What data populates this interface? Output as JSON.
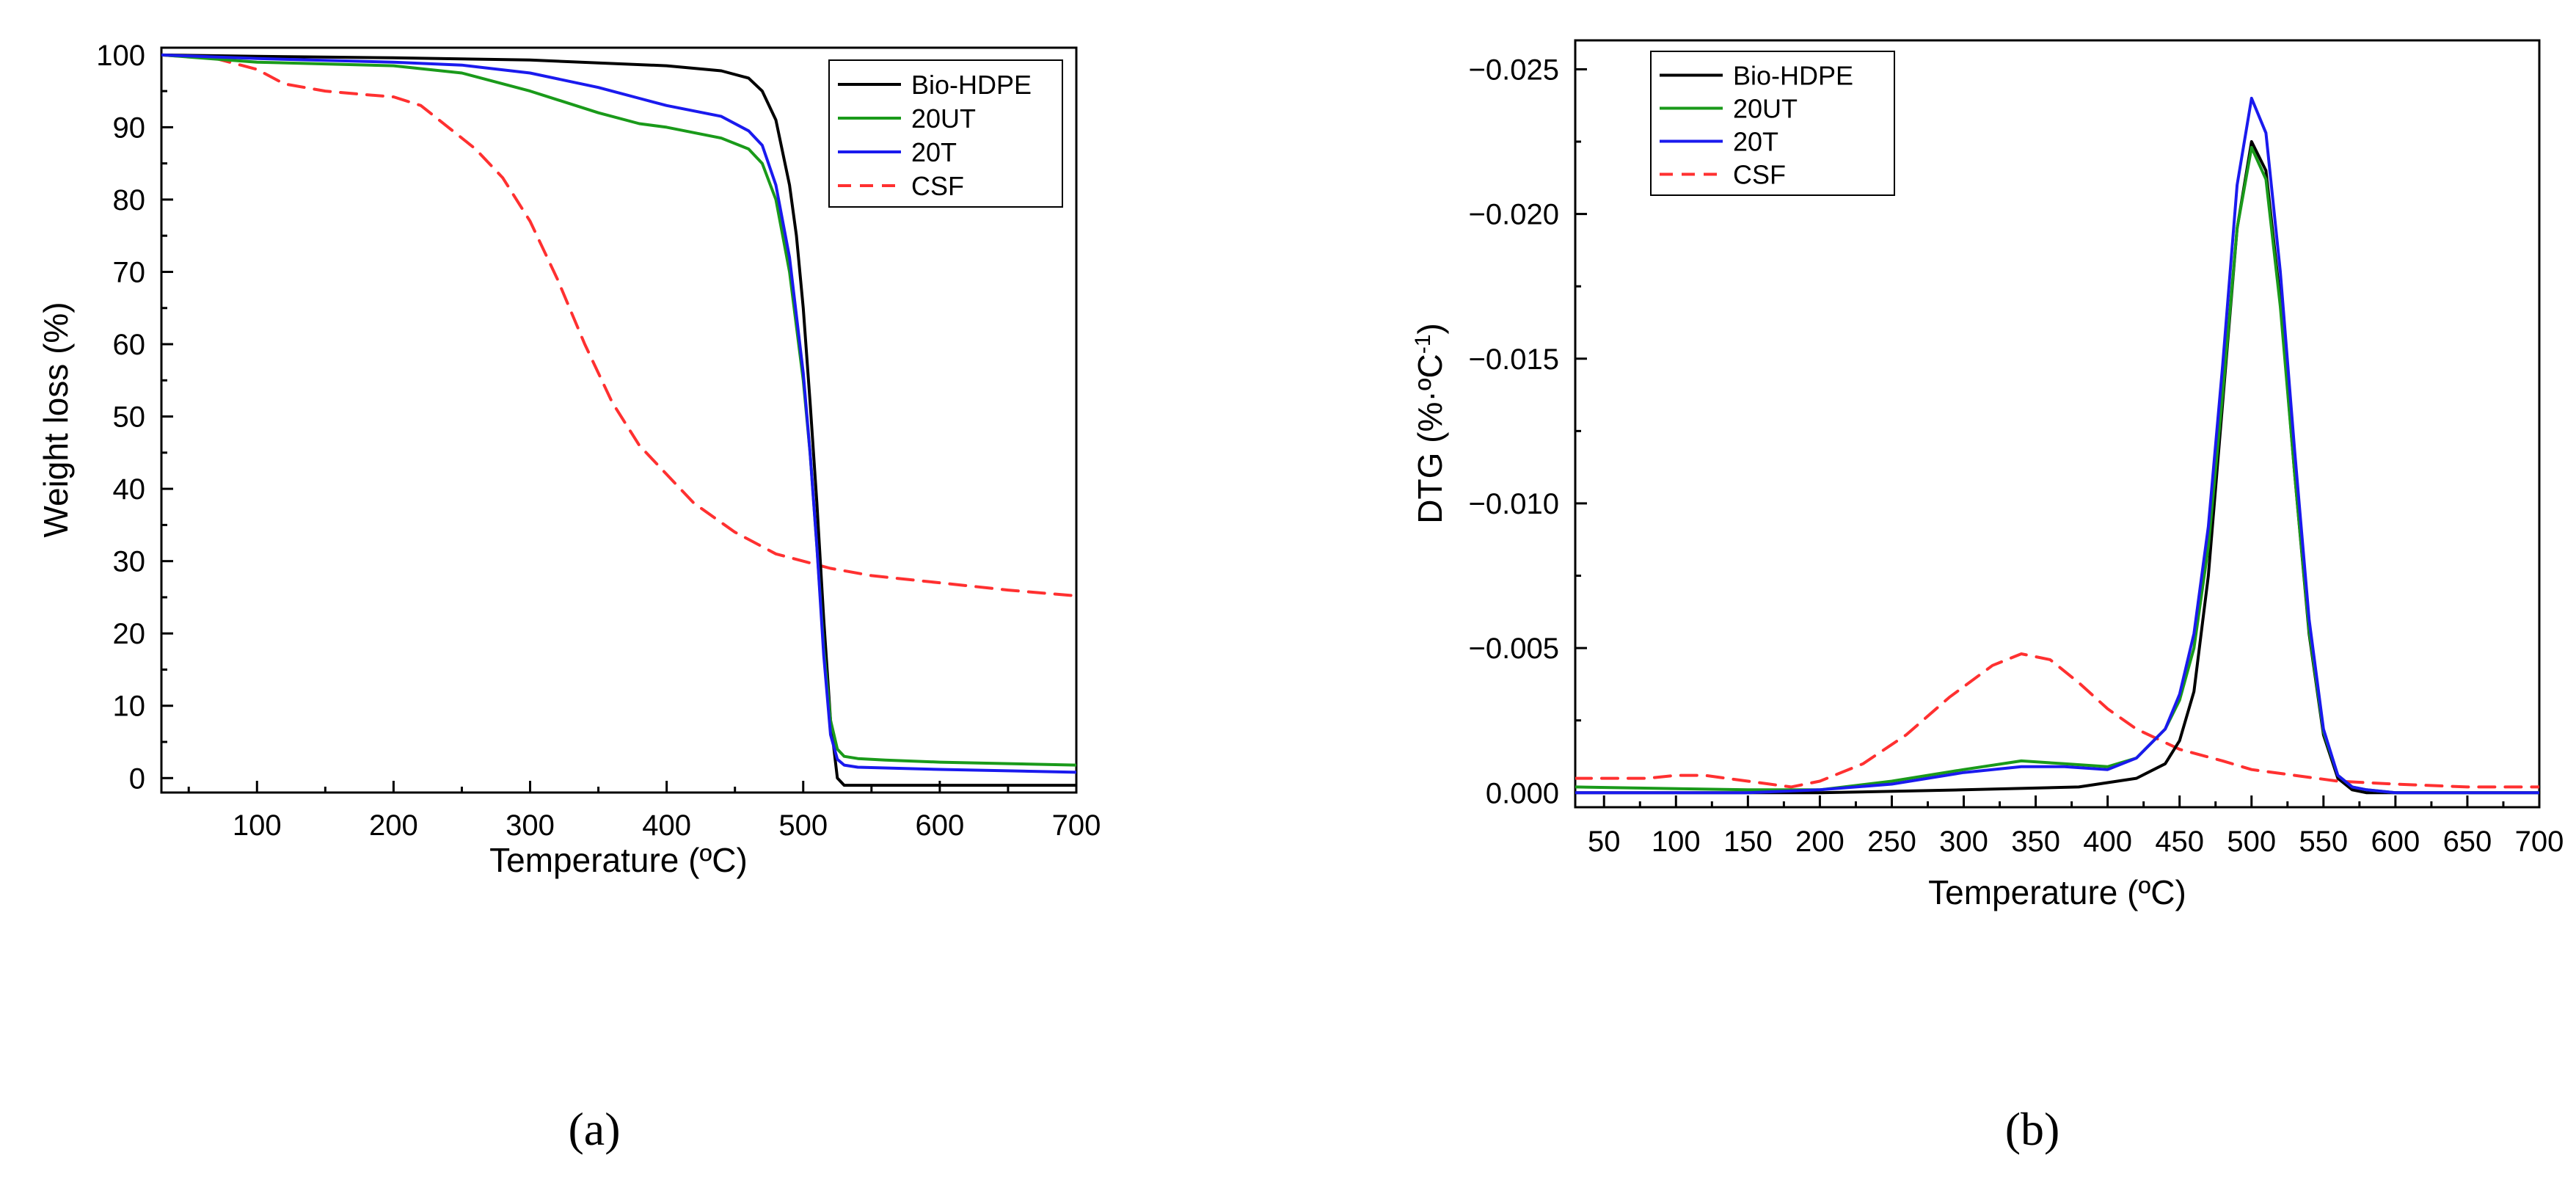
{
  "chart_data": [
    {
      "id": "a",
      "panel_label": "(a)",
      "type": "line",
      "xlabel": "Temperature (ºC)",
      "ylabel": "Weight loss (%)",
      "xlim": [
        30,
        700
      ],
      "ylim": [
        -2,
        101
      ],
      "xticks": [
        100,
        200,
        300,
        400,
        500,
        600,
        700
      ],
      "yticks": [
        0,
        10,
        20,
        30,
        40,
        50,
        60,
        70,
        80,
        90,
        100
      ],
      "legend_position": "top-right",
      "series": [
        {
          "name": "Bio-HDPE",
          "color": "#000000",
          "dash": "solid",
          "x": [
            30,
            100,
            200,
            300,
            400,
            440,
            460,
            470,
            480,
            490,
            495,
            500,
            505,
            510,
            515,
            520,
            525,
            530,
            560,
            600,
            700
          ],
          "y": [
            100,
            99.8,
            99.6,
            99.3,
            98.5,
            97.8,
            96.8,
            95,
            91,
            82,
            75,
            65,
            52,
            38,
            22,
            8,
            0,
            -1,
            -1,
            -1,
            -1
          ]
        },
        {
          "name": "20UT",
          "color": "#1a9a1a",
          "dash": "solid",
          "x": [
            30,
            100,
            200,
            250,
            300,
            350,
            380,
            400,
            440,
            460,
            470,
            480,
            490,
            500,
            505,
            510,
            515,
            520,
            525,
            530,
            540,
            560,
            600,
            650,
            700
          ],
          "y": [
            100,
            99,
            98.5,
            97.5,
            95,
            92,
            90.5,
            90,
            88.5,
            87,
            85,
            80,
            70,
            55,
            45,
            32,
            18,
            8,
            4,
            3,
            2.7,
            2.5,
            2.2,
            2,
            1.8
          ]
        },
        {
          "name": "20T",
          "color": "#1a1aee",
          "dash": "solid",
          "x": [
            30,
            100,
            200,
            250,
            300,
            350,
            380,
            400,
            440,
            460,
            470,
            480,
            490,
            500,
            505,
            510,
            515,
            520,
            525,
            530,
            540,
            560,
            600,
            650,
            700
          ],
          "y": [
            100,
            99.5,
            99,
            98.6,
            97.5,
            95.5,
            94,
            93,
            91.5,
            89.5,
            87.5,
            82,
            72,
            56,
            45,
            32,
            17,
            6,
            2.6,
            1.8,
            1.5,
            1.4,
            1.2,
            1,
            0.8
          ]
        },
        {
          "name": "CSF",
          "color": "#ff3030",
          "dash": "dashed",
          "x": [
            30,
            70,
            100,
            120,
            150,
            180,
            200,
            220,
            240,
            260,
            280,
            300,
            320,
            340,
            360,
            380,
            400,
            420,
            450,
            480,
            500,
            520,
            550,
            600,
            650,
            700
          ],
          "y": [
            100,
            99.5,
            98,
            96,
            95,
            94.5,
            94.2,
            93,
            90,
            87,
            83,
            77,
            69,
            60,
            52,
            46,
            42,
            38,
            34,
            31,
            30,
            29,
            28,
            27,
            26,
            25.2
          ]
        }
      ]
    },
    {
      "id": "b",
      "panel_label": "(b)",
      "type": "line",
      "xlabel": "Temperature (ºC)",
      "ylabel_main": "DTG (%·ºC",
      "ylabel_sup": "-1",
      "ylabel_close": ")",
      "xlim": [
        30,
        700
      ],
      "ylim": [
        0.0005,
        -0.026
      ],
      "xticks": [
        50,
        100,
        150,
        200,
        250,
        300,
        350,
        400,
        450,
        500,
        550,
        600,
        650,
        700
      ],
      "yticks": [
        0,
        -0.005,
        -0.01,
        -0.015,
        -0.02,
        -0.025
      ],
      "ytick_labels": [
        "0.000",
        "−0.005",
        "−0.010",
        "−0.015",
        "−0.020",
        "−0.025"
      ],
      "legend_position": "top-left",
      "series": [
        {
          "name": "Bio-HDPE",
          "color": "#000000",
          "dash": "solid",
          "x": [
            30,
            200,
            300,
            380,
            420,
            440,
            450,
            460,
            470,
            480,
            490,
            500,
            510,
            520,
            530,
            540,
            550,
            560,
            570,
            580,
            600,
            700
          ],
          "y": [
            0,
            0,
            -0.0001,
            -0.0002,
            -0.0005,
            -0.001,
            -0.0018,
            -0.0035,
            -0.0075,
            -0.0135,
            -0.0195,
            -0.0225,
            -0.0215,
            -0.017,
            -0.011,
            -0.0055,
            -0.002,
            -0.0005,
            -0.0001,
            0,
            0,
            0
          ]
        },
        {
          "name": "20UT",
          "color": "#1a9a1a",
          "dash": "solid",
          "x": [
            30,
            150,
            200,
            250,
            300,
            340,
            370,
            400,
            420,
            440,
            450,
            460,
            470,
            480,
            490,
            500,
            510,
            520,
            530,
            540,
            550,
            560,
            570,
            580,
            600,
            700
          ],
          "y": [
            -0.0002,
            -0.0001,
            -0.0001,
            -0.0004,
            -0.0008,
            -0.0011,
            -0.001,
            -0.0009,
            -0.0012,
            -0.0022,
            -0.0032,
            -0.005,
            -0.0085,
            -0.0138,
            -0.0195,
            -0.0223,
            -0.0212,
            -0.0168,
            -0.011,
            -0.0056,
            -0.0021,
            -0.0006,
            -0.0002,
            -0.0001,
            0,
            0
          ]
        },
        {
          "name": "20T",
          "color": "#1a1aee",
          "dash": "solid",
          "x": [
            30,
            150,
            200,
            250,
            300,
            340,
            370,
            400,
            420,
            440,
            450,
            460,
            470,
            480,
            490,
            500,
            510,
            520,
            530,
            540,
            550,
            560,
            570,
            580,
            600,
            700
          ],
          "y": [
            0,
            0,
            -0.0001,
            -0.0003,
            -0.0007,
            -0.0009,
            -0.0009,
            -0.0008,
            -0.0012,
            -0.0022,
            -0.0034,
            -0.0055,
            -0.0092,
            -0.0148,
            -0.021,
            -0.024,
            -0.0228,
            -0.018,
            -0.0118,
            -0.006,
            -0.0022,
            -0.0006,
            -0.0002,
            -0.0001,
            0,
            0
          ]
        },
        {
          "name": "CSF",
          "color": "#ff3030",
          "dash": "dashed",
          "x": [
            30,
            80,
            100,
            120,
            150,
            180,
            200,
            230,
            260,
            290,
            320,
            340,
            360,
            380,
            400,
            420,
            450,
            480,
            500,
            530,
            560,
            600,
            650,
            700
          ],
          "y": [
            -0.0005,
            -0.0005,
            -0.0006,
            -0.0006,
            -0.0004,
            -0.0002,
            -0.0004,
            -0.001,
            -0.002,
            -0.0033,
            -0.0044,
            -0.0048,
            -0.0046,
            -0.0038,
            -0.0029,
            -0.0022,
            -0.0015,
            -0.0011,
            -0.0008,
            -0.0006,
            -0.0004,
            -0.0003,
            -0.0002,
            -0.0002
          ]
        }
      ]
    }
  ]
}
